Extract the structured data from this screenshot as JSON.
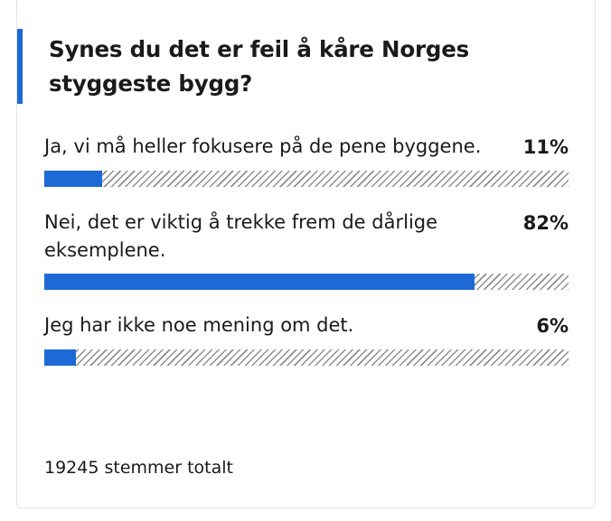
{
  "poll": {
    "question": "Synes du det er feil å kåre Norges styggeste bygg?",
    "accent_color": "#1d6ad6",
    "options": [
      {
        "label": "Ja, vi må heller fokusere på de pene byggene.",
        "percent_label": "11%",
        "percent": 11
      },
      {
        "label": "Nei, det er viktig å trekke frem de dårlige eksemplene.",
        "percent_label": "82%",
        "percent": 82
      },
      {
        "label": "Jeg har ikke noe mening om det.",
        "percent_label": "6%",
        "percent": 6
      }
    ],
    "total_votes_label": "19245 stemmer totalt"
  }
}
